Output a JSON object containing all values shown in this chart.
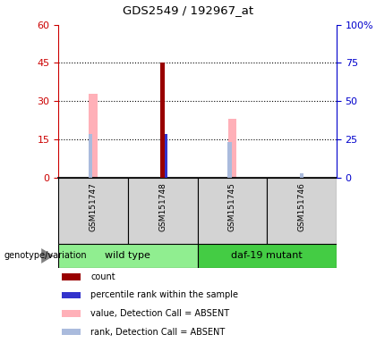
{
  "title": "GDS2549 / 192967_at",
  "samples": [
    "GSM151747",
    "GSM151748",
    "GSM151745",
    "GSM151746"
  ],
  "left_ylim": [
    0,
    60
  ],
  "right_ylim": [
    0,
    100
  ],
  "left_yticks": [
    0,
    15,
    30,
    45,
    60
  ],
  "right_yticks": [
    0,
    25,
    50,
    75,
    100
  ],
  "right_yticklabels": [
    "0",
    "25",
    "50",
    "75",
    "100%"
  ],
  "left_tick_color": "#cc0000",
  "right_tick_color": "#0000cc",
  "bars": {
    "GSM151747": {
      "count": null,
      "percentile": null,
      "value_absent": 33,
      "rank_absent": 17
    },
    "GSM151748": {
      "count": 45,
      "percentile": 17,
      "value_absent": null,
      "rank_absent": null
    },
    "GSM151745": {
      "count": null,
      "percentile": null,
      "value_absent": 23,
      "rank_absent": 14
    },
    "GSM151746": {
      "count": null,
      "percentile": null,
      "value_absent": null,
      "rank_absent": 1.5
    }
  },
  "count_color": "#990000",
  "percentile_color": "#3333cc",
  "value_absent_color": "#FFB0B8",
  "rank_absent_color": "#AABBDD",
  "legend_items": [
    {
      "color": "#990000",
      "label": "count"
    },
    {
      "color": "#3333cc",
      "label": "percentile rank within the sample"
    },
    {
      "color": "#FFB0B8",
      "label": "value, Detection Call = ABSENT"
    },
    {
      "color": "#AABBDD",
      "label": "rank, Detection Call = ABSENT"
    }
  ],
  "background_color": "#ffffff",
  "plot_bg_color": "#ffffff",
  "genotype_label": "genotype/variation",
  "sample_box_color": "#d3d3d3",
  "wt_group_color": "#90EE90",
  "daf_group_color": "#44CC44",
  "groups": [
    {
      "label": "wild type",
      "start": 0,
      "end": 2
    },
    {
      "label": "daf-19 mutant",
      "start": 2,
      "end": 4
    }
  ]
}
